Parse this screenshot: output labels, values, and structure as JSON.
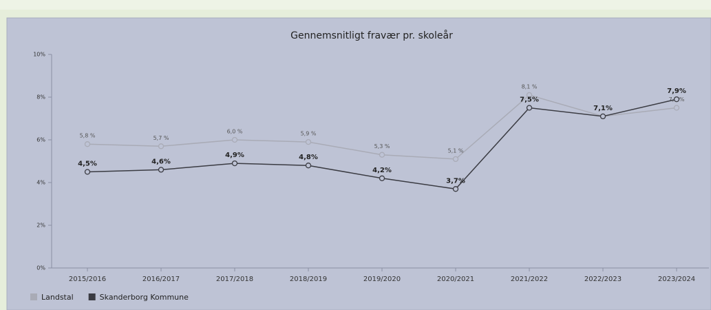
{
  "chart_data": {
    "type": "line",
    "title": "Gennemsnitligt fravær pr. skoleår",
    "categories": [
      "2015/2016",
      "2016/2017",
      "2017/2018",
      "2018/2019",
      "2019/2020",
      "2020/2021",
      "2021/2022",
      "2022/2023",
      "2023/2024"
    ],
    "series": [
      {
        "name": "Landstal",
        "color": "#a9abb6",
        "values": [
          5.8,
          5.7,
          6.0,
          5.9,
          5.3,
          5.1,
          8.1,
          7.1,
          7.5
        ],
        "value_labels": [
          "5,8 %",
          "5,7 %",
          "6,0 %",
          "5,9 %",
          "5,3 %",
          "5,1 %",
          "8,1 %",
          null,
          "7,5 %"
        ]
      },
      {
        "name": "Skanderborg Kommune",
        "color": "#3a3b42",
        "values": [
          4.5,
          4.6,
          4.9,
          4.8,
          4.2,
          3.7,
          7.5,
          7.1,
          7.9
        ],
        "value_labels": [
          "4,5%",
          "4,6%",
          "4,9%",
          "4,8%",
          "4,2%",
          "3,7%",
          "7,5%",
          "7,1%",
          "7,9%"
        ]
      }
    ],
    "ylim": [
      0,
      10
    ],
    "yticks": [
      {
        "value": 0,
        "label": "0%"
      },
      {
        "value": 2,
        "label": "2%"
      },
      {
        "value": 4,
        "label": "4%"
      },
      {
        "value": 6,
        "label": "6%"
      },
      {
        "value": 8,
        "label": "8%"
      },
      {
        "value": 10,
        "label": "10%"
      }
    ],
    "grid": false,
    "legend": "bottom-left"
  }
}
